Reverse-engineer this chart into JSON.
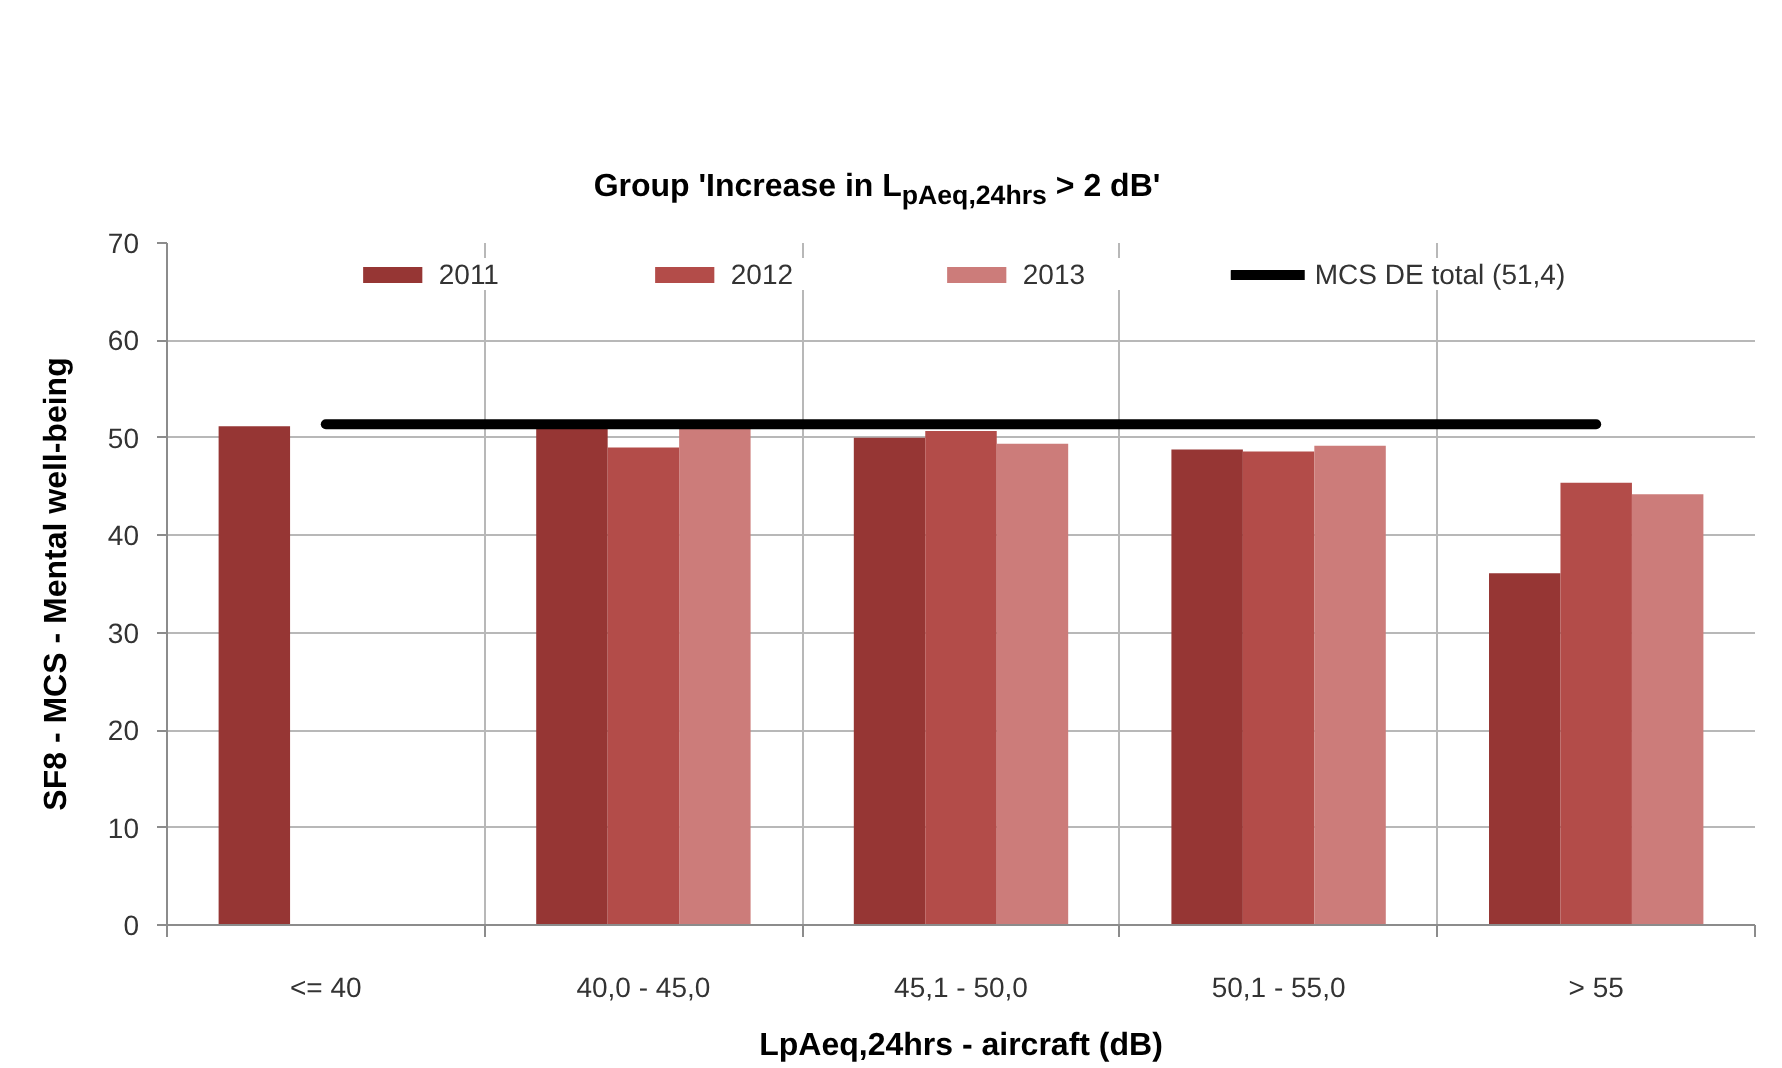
{
  "chart_data": {
    "type": "bar",
    "title": "Group 'Increase in L$_{pAeq,24hrs}$ > 2 dB'",
    "xlabel": "LpAeq,24hrs - aircraft (dB)",
    "ylabel": "SF8 - MCS - Mental well-being",
    "categories": [
      "<= 40",
      "40,0 - 45,0",
      "45,1 - 50,0",
      "50,1 - 55,0",
      "> 55"
    ],
    "series": [
      {
        "name": "2011",
        "color": "#963634",
        "values": [
          51.2,
          51.0,
          50.0,
          48.8,
          36.1
        ]
      },
      {
        "name": "2012",
        "color": "#b34c49",
        "values": [
          null,
          49.0,
          50.7,
          48.6,
          45.4
        ]
      },
      {
        "name": "2013",
        "color": "#cc7c7a",
        "values": [
          null,
          51.0,
          49.4,
          49.2,
          44.2
        ]
      },
      {
        "name": "MCS DE total (51,4)",
        "type": "line",
        "color": "#000000",
        "values": [
          51.4,
          51.4,
          51.4,
          51.4,
          51.4
        ]
      }
    ],
    "ylim": [
      0,
      70
    ],
    "yticks": [
      0,
      10,
      20,
      30,
      40,
      50,
      60,
      70
    ],
    "grid": true,
    "legend": "top"
  }
}
